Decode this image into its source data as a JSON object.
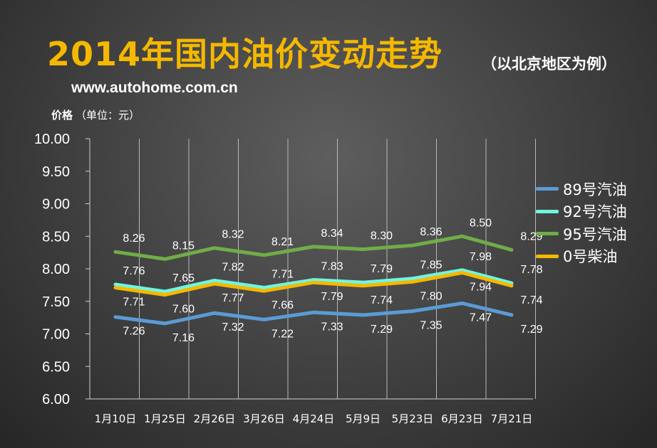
{
  "header": {
    "title": "2014年国内油价变动走势",
    "subtitle": "（以北京地区为例）",
    "source": "www.autohome.com.cn"
  },
  "chart_data": {
    "type": "line",
    "title": "2014年国内油价变动走势",
    "subtitle": "（以北京地区为例）",
    "ylabel": "价格",
    "ylabel_unit": "（单位：元）",
    "xlabel": "",
    "categories": [
      "1月10日",
      "1月25日",
      "2月26日",
      "3月26日",
      "4月24日",
      "5月9日",
      "5月23日",
      "6月23日",
      "7月21日"
    ],
    "ylim": [
      6.0,
      10.0
    ],
    "yticks": [
      "6.00",
      "6.50",
      "7.00",
      "7.50",
      "8.00",
      "8.50",
      "9.00",
      "9.50",
      "10.00"
    ],
    "grid": "vertical",
    "legend_position": "right",
    "series": [
      {
        "name": "89号汽油",
        "color": "#5b9bd5",
        "values": [
          7.26,
          7.16,
          7.32,
          7.22,
          7.33,
          7.29,
          7.35,
          7.47,
          7.29
        ]
      },
      {
        "name": "92号汽油",
        "color": "#6ff5e1",
        "values": [
          7.76,
          7.65,
          7.82,
          7.71,
          7.83,
          7.79,
          7.85,
          7.98,
          7.78
        ]
      },
      {
        "name": "95号汽油",
        "color": "#70ad47",
        "values": [
          8.26,
          8.15,
          8.32,
          8.21,
          8.34,
          8.3,
          8.36,
          8.5,
          8.29
        ]
      },
      {
        "name": "0号柴油",
        "color": "#f5b800",
        "values": [
          7.71,
          7.6,
          7.77,
          7.66,
          7.79,
          7.74,
          7.8,
          7.94,
          7.74
        ]
      }
    ]
  }
}
